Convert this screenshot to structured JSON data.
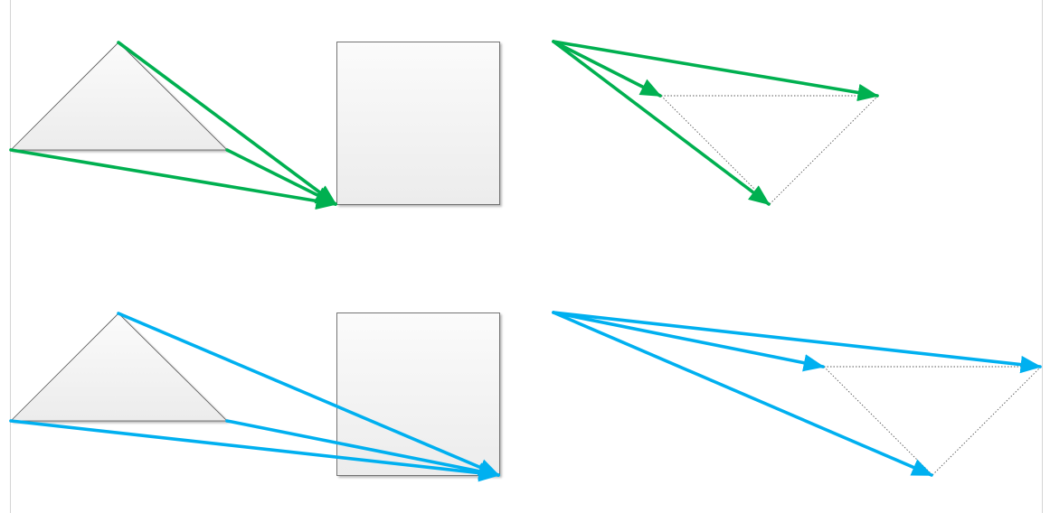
{
  "colors": {
    "background": "#ffffff",
    "frame": "#d4d4d4",
    "shape_stroke": "#555555",
    "shape_fill_top": "#fbfbfb",
    "shape_fill_bottom": "#ececec",
    "dotted_guide": "#5a5a5a",
    "green_arrow": "#00b050",
    "blue_arrow": "#00b0f0"
  },
  "panels": [
    {
      "id": "top-left",
      "kind": "triangle-to-rectangle",
      "arrow_color": "green",
      "arrow_count": 3
    },
    {
      "id": "top-right",
      "kind": "vector-triangle",
      "arrow_color": "green",
      "arrow_count": 3
    },
    {
      "id": "bottom-left",
      "kind": "triangle-to-rectangle",
      "arrow_color": "blue",
      "arrow_count": 3
    },
    {
      "id": "bottom-right",
      "kind": "vector-triangle",
      "arrow_color": "blue",
      "arrow_count": 3
    }
  ]
}
